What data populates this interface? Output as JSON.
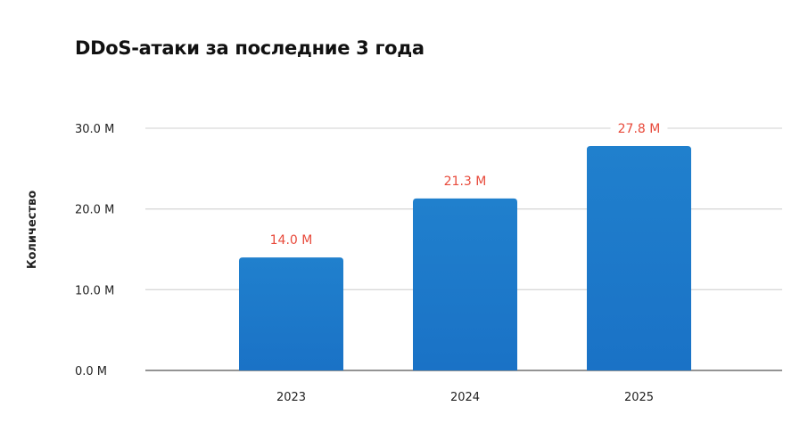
{
  "chart_data": {
    "type": "bar",
    "title": "DDoS-атаки за последние 3 года",
    "xlabel": "",
    "ylabel": "Количество",
    "categories": [
      "2023",
      "2024",
      "2025"
    ],
    "values": [
      14.0,
      21.3,
      27.8
    ],
    "data_labels": [
      "14.0 M",
      "21.3 M",
      "27.8 M"
    ],
    "ylim": [
      0,
      30
    ],
    "yticks": [
      0,
      10,
      20,
      30
    ],
    "ytick_labels": [
      "0.0 M",
      "10.0 M",
      "20.0 M",
      "30.0 M"
    ],
    "grid": true,
    "colors": {
      "bar": "#2080cd",
      "bar_bottom": "#1a72c6",
      "label": "#e84a3b",
      "grid": "#d9d9d9",
      "axis": "#555555"
    }
  }
}
